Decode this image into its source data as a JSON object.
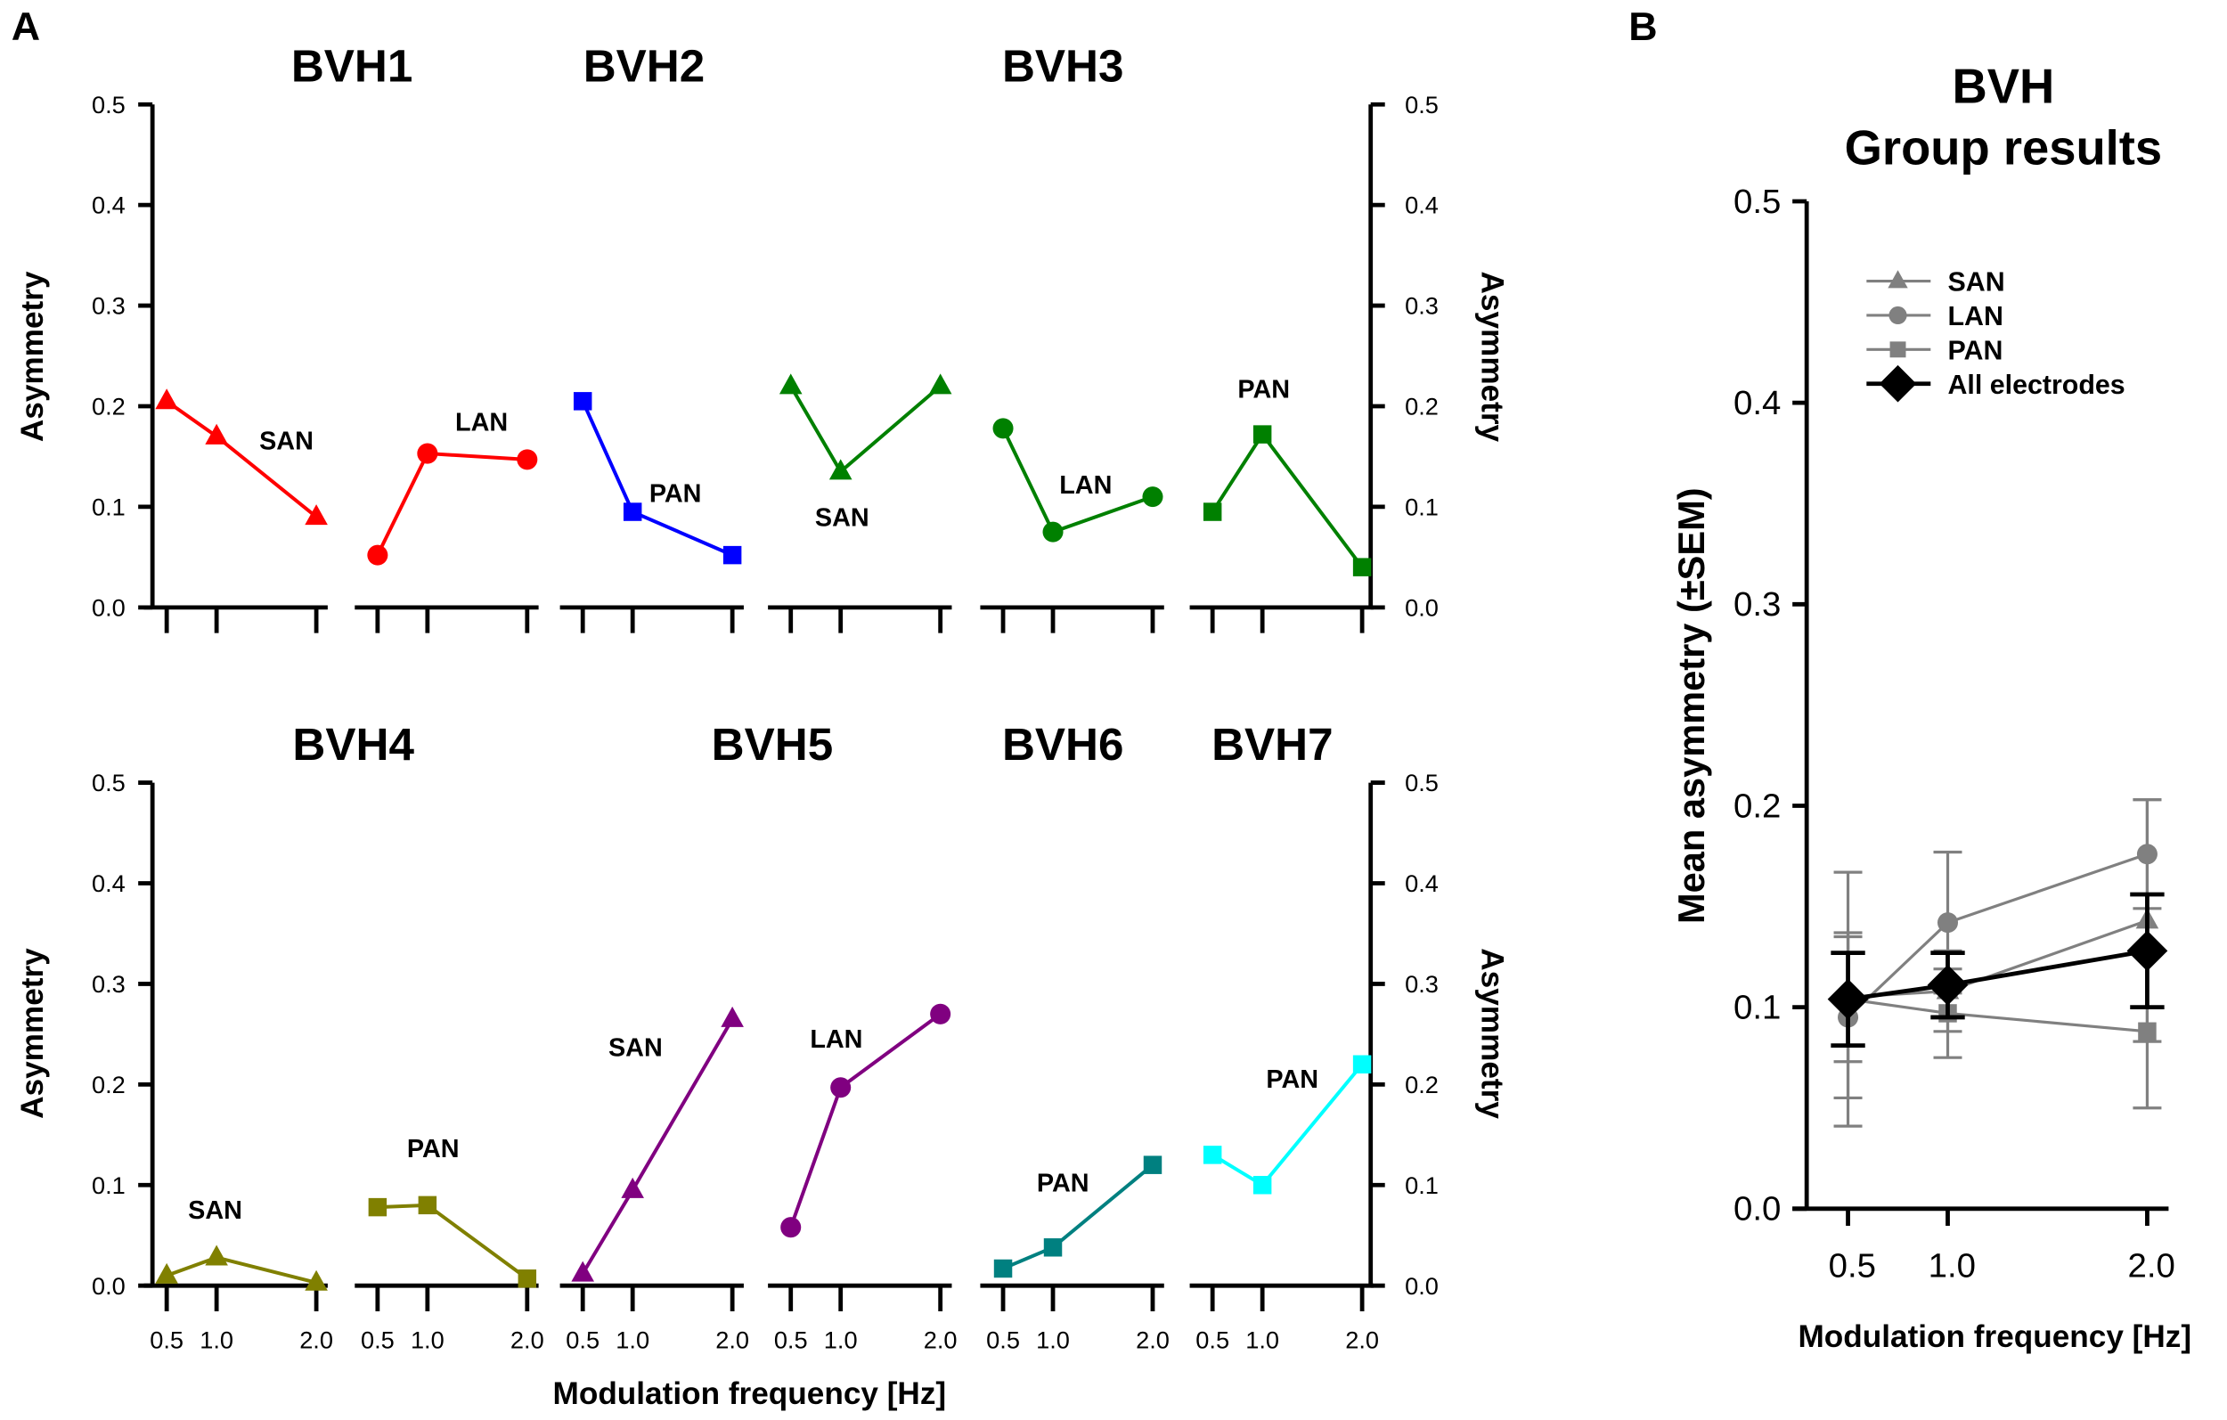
{
  "panel_labels": {
    "a": "A",
    "b": "B"
  },
  "chart_data": [
    {
      "type": "line",
      "panel": "A",
      "xlabel": "Modulation frequency [Hz]",
      "ylabel": "Asymmetry",
      "ylim": [
        0,
        0.5
      ],
      "yticks": [
        "0.0",
        "0.1",
        "0.2",
        "0.3",
        "0.4",
        "0.5"
      ],
      "x": [
        0.5,
        1.0,
        2.0
      ],
      "xtick_labels": [
        "0.5",
        "1.0",
        "2.0"
      ],
      "grid": false,
      "rows": [
        {
          "titles": [
            "BVH1",
            "BVH2",
            "BVH3"
          ],
          "series": [
            {
              "subject": "BVH1",
              "name": "SAN",
              "marker": "triangle",
              "color": "#ff0000",
              "values": [
                0.205,
                0.17,
                0.09
              ]
            },
            {
              "subject": "BVH1",
              "name": "LAN",
              "marker": "circle",
              "color": "#ff0000",
              "values": [
                0.052,
                0.153,
                0.147
              ]
            },
            {
              "subject": "BVH2",
              "name": "PAN",
              "marker": "square",
              "color": "#0000ff",
              "values": [
                0.205,
                0.095,
                0.052
              ]
            },
            {
              "subject": "BVH3",
              "name": "SAN",
              "marker": "triangle",
              "color": "#008000",
              "values": [
                0.22,
                0.135,
                0.22
              ]
            },
            {
              "subject": "BVH3",
              "name": "LAN",
              "marker": "circle",
              "color": "#008000",
              "values": [
                0.178,
                0.075,
                0.11
              ]
            },
            {
              "subject": "BVH3",
              "name": "PAN",
              "marker": "square",
              "color": "#008000",
              "values": [
                0.095,
                0.172,
                0.04
              ]
            }
          ]
        },
        {
          "titles": [
            "BVH4",
            "BVH5",
            "BVH6",
            "BVH7"
          ],
          "series": [
            {
              "subject": "BVH4",
              "name": "SAN",
              "marker": "triangle",
              "color": "#808000",
              "values": [
                0.01,
                0.028,
                0.003
              ]
            },
            {
              "subject": "BVH4",
              "name": "PAN",
              "marker": "square",
              "color": "#808000",
              "values": [
                0.078,
                0.08,
                0.007
              ]
            },
            {
              "subject": "BVH5",
              "name": "SAN",
              "marker": "triangle",
              "color": "#800080",
              "values": [
                0.012,
                0.095,
                0.265
              ]
            },
            {
              "subject": "BVH5",
              "name": "LAN",
              "marker": "circle",
              "color": "#800080",
              "values": [
                0.058,
                0.197,
                0.27
              ]
            },
            {
              "subject": "BVH6",
              "name": "PAN",
              "marker": "square",
              "color": "#008080",
              "values": [
                0.017,
                0.038,
                0.12
              ]
            },
            {
              "subject": "BVH7",
              "name": "PAN",
              "marker": "square",
              "color": "#00ffff",
              "values": [
                0.13,
                0.1,
                0.22
              ]
            }
          ]
        }
      ]
    },
    {
      "type": "line",
      "panel": "B",
      "title": [
        "BVH",
        "Group results"
      ],
      "xlabel": "Modulation frequency [Hz]",
      "ylabel": "Mean asymmetry (±SEM)",
      "ylim": [
        0,
        0.5
      ],
      "yticks": [
        "0.0",
        "0.1",
        "0.2",
        "0.3",
        "0.4",
        "0.5"
      ],
      "x": [
        0.5,
        1.0,
        2.0
      ],
      "xtick_labels": [
        "0.5",
        "1.0",
        "2.0"
      ],
      "legend": "top-left",
      "grid": false,
      "series": [
        {
          "name": "SAN",
          "marker": "triangle",
          "color": "#808080",
          "values": [
            0.105,
            0.108,
            0.143
          ],
          "sem": [
            0.032,
            0.02,
            0.06
          ]
        },
        {
          "name": "LAN",
          "marker": "circle",
          "color": "#808080",
          "values": [
            0.095,
            0.142,
            0.176
          ],
          "sem": [
            0.04,
            0.035,
            0.027
          ]
        },
        {
          "name": "PAN",
          "marker": "square",
          "color": "#808080",
          "values": [
            0.104,
            0.097,
            0.088
          ],
          "sem": [
            0.063,
            0.022,
            0.038
          ]
        },
        {
          "name": "All electrodes",
          "marker": "diamond",
          "color": "#000000",
          "values": [
            0.104,
            0.111,
            0.128
          ],
          "sem": [
            0.023,
            0.016,
            0.028
          ]
        }
      ]
    }
  ]
}
